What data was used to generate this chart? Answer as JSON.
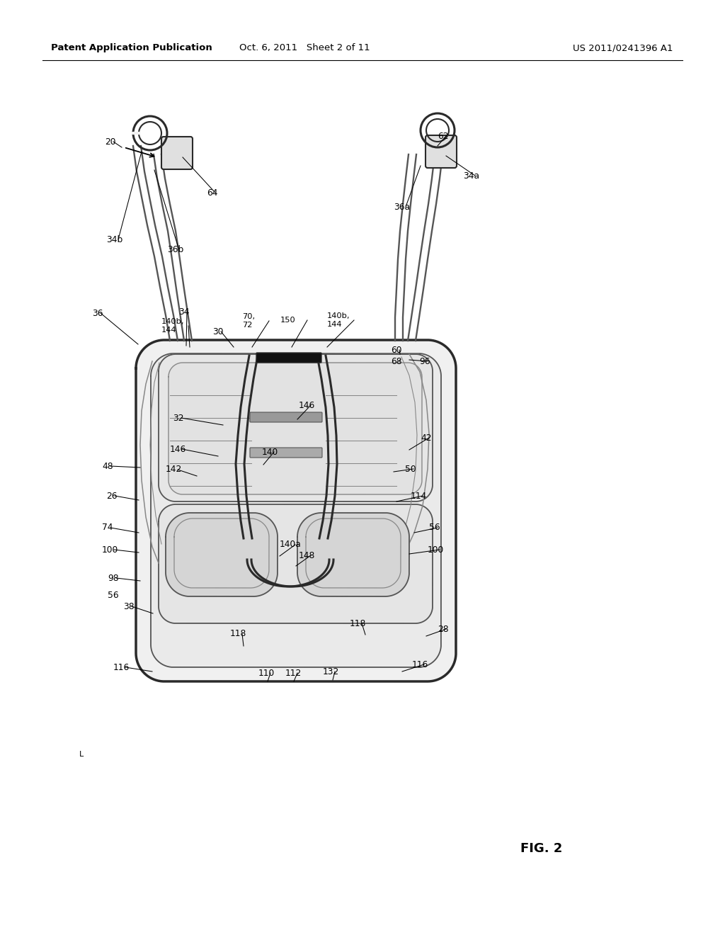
{
  "background_color": "#ffffff",
  "header_left": "Patent Application Publication",
  "header_center": "Oct. 6, 2011   Sheet 2 of 11",
  "header_right": "US 2011/0241396 A1",
  "fig_label": "FIG. 2",
  "color_dark": "#2a2a2a",
  "color_mid": "#555555",
  "color_light": "#888888"
}
